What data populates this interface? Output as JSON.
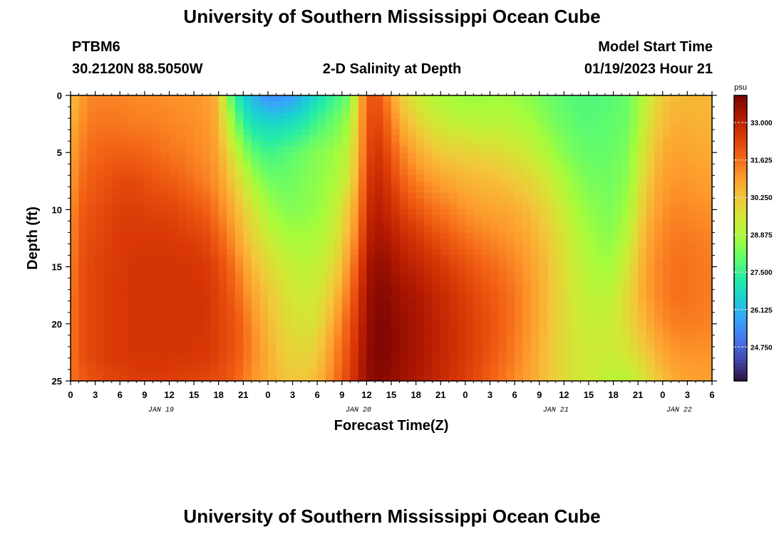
{
  "header": {
    "title": "University of Southern Mississippi Ocean Cube",
    "station_id": "PTBM6",
    "station_coords": "30.2120N  88.5050W",
    "subtitle": "2-D Salinity at Depth",
    "model_start_label": "Model Start Time",
    "model_start_value": "01/19/2023 Hour 21"
  },
  "footer": {
    "title": "University of Southern Mississippi Ocean Cube"
  },
  "colors": {
    "colormap": [
      "#30123b",
      "#4145ab",
      "#4675ed",
      "#39a2fc",
      "#1bcfd4",
      "#24eca6",
      "#61fc6c",
      "#a4fc3b",
      "#d1e834",
      "#f3c63a",
      "#fe9b2d",
      "#f36315",
      "#d93806",
      "#b11901",
      "#7a0402"
    ]
  },
  "chart_data": {
    "type": "heatmap",
    "title": "2-D Salinity at Depth",
    "xlabel": "Forecast Time(Z)",
    "ylabel": "Depth (ft)",
    "colorbar_unit": "psu",
    "x_range_hours": [
      0,
      78
    ],
    "y_range_ft": [
      0,
      25
    ],
    "x_tick_labels": [
      "0",
      "3",
      "6",
      "9",
      "12",
      "15",
      "18",
      "21",
      "0",
      "3",
      "6",
      "9",
      "12",
      "15",
      "18",
      "21",
      "0",
      "3",
      "6",
      "9",
      "12",
      "15",
      "18",
      "21",
      "0",
      "3",
      "6"
    ],
    "y_tick_labels": [
      "0",
      "5",
      "10",
      "15",
      "20",
      "25"
    ],
    "date_labels": [
      {
        "label": "JAN 19",
        "hour": 11
      },
      {
        "label": "JAN 20",
        "hour": 35
      },
      {
        "label": "JAN 21",
        "hour": 59
      },
      {
        "label": "JAN 22",
        "hour": 74
      }
    ],
    "colorbar_ticks": [
      "33.000",
      "31.625",
      "30.250",
      "28.875",
      "27.500",
      "26.125",
      "24.750"
    ],
    "colorbar_range": [
      23.5,
      34.0
    ],
    "depth_levels_ft": [
      0,
      2.5,
      5,
      7.5,
      10,
      12.5,
      15,
      17.5,
      20,
      22.5,
      25
    ],
    "time_hours": [
      0,
      1,
      2,
      3,
      4,
      5,
      6,
      8,
      10,
      12,
      14,
      16,
      17,
      18,
      19,
      20,
      21,
      22,
      24,
      26,
      28,
      30,
      32,
      34,
      35,
      36,
      37,
      38,
      39,
      40,
      42,
      44,
      46,
      48,
      50,
      52,
      54,
      56,
      58,
      60,
      62,
      64,
      66,
      68,
      70,
      72,
      74,
      76,
      78
    ],
    "salinity": [
      [
        30.3,
        30.6,
        30.8,
        30.9,
        31.0,
        31.1,
        31.2,
        31.3,
        31.3,
        31.3,
        31.5
      ],
      [
        30.8,
        31.0,
        31.3,
        31.5,
        31.8,
        31.9,
        32.0,
        32.0,
        32.0,
        32.0,
        31.8
      ],
      [
        31.2,
        31.4,
        31.6,
        31.8,
        32.0,
        32.1,
        32.2,
        32.2,
        32.2,
        32.2,
        32.0
      ],
      [
        31.3,
        31.5,
        31.7,
        31.9,
        32.1,
        32.2,
        32.3,
        32.3,
        32.3,
        32.3,
        32.1
      ],
      [
        31.3,
        31.5,
        31.8,
        32.0,
        32.2,
        32.3,
        32.4,
        32.4,
        32.4,
        32.4,
        32.2
      ],
      [
        31.3,
        31.5,
        31.8,
        32.1,
        32.3,
        32.4,
        32.4,
        32.5,
        32.5,
        32.5,
        32.3
      ],
      [
        31.3,
        31.5,
        31.8,
        32.2,
        32.4,
        32.5,
        32.5,
        32.5,
        32.5,
        32.5,
        32.3
      ],
      [
        31.2,
        31.4,
        31.8,
        32.2,
        32.4,
        32.5,
        32.6,
        32.6,
        32.6,
        32.6,
        32.4
      ],
      [
        31.2,
        31.4,
        31.7,
        32.0,
        32.3,
        32.5,
        32.6,
        32.6,
        32.6,
        32.6,
        32.4
      ],
      [
        31.1,
        31.3,
        31.5,
        31.9,
        32.3,
        32.5,
        32.6,
        32.6,
        32.6,
        32.6,
        32.4
      ],
      [
        31.1,
        31.2,
        31.4,
        31.7,
        32.1,
        32.4,
        32.6,
        32.6,
        32.6,
        32.6,
        32.3
      ],
      [
        31.0,
        31.1,
        31.2,
        31.4,
        31.9,
        32.3,
        32.5,
        32.6,
        32.6,
        32.5,
        32.3
      ],
      [
        30.9,
        31.0,
        31.1,
        31.3,
        31.7,
        32.1,
        32.4,
        32.5,
        32.5,
        32.5,
        32.2
      ],
      [
        30.4,
        30.6,
        30.8,
        31.0,
        31.4,
        31.8,
        32.2,
        32.3,
        32.3,
        32.3,
        32.1
      ],
      [
        28.6,
        29.4,
        30.1,
        30.6,
        31.0,
        31.5,
        31.9,
        32.1,
        32.2,
        32.2,
        32.0
      ],
      [
        27.4,
        28.4,
        29.4,
        30.1,
        30.6,
        31.0,
        31.5,
        31.8,
        32.0,
        32.0,
        31.8
      ],
      [
        26.6,
        27.5,
        28.6,
        29.5,
        30.1,
        30.5,
        31.0,
        31.4,
        31.7,
        31.7,
        31.5
      ],
      [
        26.1,
        27.0,
        28.0,
        28.9,
        29.7,
        30.1,
        30.5,
        30.9,
        31.2,
        31.3,
        31.1
      ],
      [
        25.4,
        26.7,
        27.6,
        28.2,
        28.8,
        29.4,
        29.9,
        30.3,
        30.5,
        30.7,
        30.7
      ],
      [
        25.5,
        26.8,
        27.8,
        28.1,
        28.4,
        28.9,
        29.4,
        29.7,
        29.9,
        30.1,
        30.3
      ],
      [
        26.0,
        27.1,
        28.1,
        28.3,
        28.4,
        28.8,
        29.2,
        29.4,
        29.6,
        29.9,
        30.2
      ],
      [
        26.8,
        27.7,
        28.4,
        28.5,
        28.6,
        28.9,
        29.2,
        29.5,
        29.7,
        30.1,
        30.5
      ],
      [
        27.5,
        28.1,
        28.6,
        28.8,
        29.1,
        29.4,
        29.8,
        30.3,
        30.8,
        31.2,
        31.4
      ],
      [
        28.2,
        28.8,
        29.3,
        29.7,
        30.3,
        30.7,
        31.2,
        31.6,
        32.0,
        32.2,
        32.4
      ],
      [
        30.2,
        30.4,
        30.6,
        30.9,
        31.2,
        31.6,
        32.1,
        32.5,
        32.7,
        32.9,
        33.0
      ],
      [
        31.8,
        31.9,
        32.0,
        32.3,
        32.6,
        32.9,
        33.2,
        33.4,
        33.5,
        33.6,
        33.6
      ],
      [
        32.1,
        32.4,
        32.7,
        32.9,
        33.2,
        33.4,
        33.7,
        33.8,
        33.9,
        33.9,
        33.8
      ],
      [
        31.7,
        32.0,
        32.4,
        32.7,
        33.0,
        33.3,
        33.6,
        33.8,
        33.9,
        33.9,
        33.8
      ],
      [
        31.0,
        31.5,
        32.0,
        32.4,
        32.8,
        33.2,
        33.5,
        33.7,
        33.8,
        33.8,
        33.7
      ],
      [
        30.1,
        30.8,
        31.4,
        31.9,
        32.4,
        32.9,
        33.2,
        33.5,
        33.6,
        33.6,
        33.5
      ],
      [
        29.4,
        30.1,
        30.8,
        31.4,
        32.0,
        32.6,
        33.0,
        33.3,
        33.4,
        33.4,
        33.3
      ],
      [
        29.0,
        29.6,
        30.3,
        31.0,
        31.6,
        32.2,
        32.7,
        33.0,
        33.1,
        33.1,
        33.0
      ],
      [
        28.8,
        29.3,
        30.1,
        30.8,
        31.4,
        31.9,
        32.4,
        32.7,
        32.8,
        32.8,
        32.7
      ],
      [
        28.6,
        29.2,
        30.0,
        30.6,
        31.1,
        31.6,
        32.1,
        32.4,
        32.5,
        32.5,
        32.4
      ],
      [
        28.6,
        29.1,
        29.9,
        30.5,
        30.9,
        31.4,
        31.8,
        32.1,
        32.2,
        32.2,
        32.0
      ],
      [
        28.7,
        29.1,
        29.8,
        30.4,
        30.8,
        31.2,
        31.6,
        31.8,
        31.9,
        31.8,
        31.6
      ],
      [
        28.6,
        29.0,
        29.6,
        30.2,
        30.7,
        31.0,
        31.3,
        31.5,
        31.5,
        31.4,
        31.2
      ],
      [
        28.4,
        28.8,
        29.3,
        29.9,
        30.4,
        30.7,
        30.9,
        31.0,
        31.0,
        30.9,
        30.8
      ],
      [
        28.1,
        28.4,
        28.9,
        29.5,
        29.9,
        30.2,
        30.4,
        30.4,
        30.4,
        30.3,
        30.3
      ],
      [
        27.9,
        28.1,
        28.4,
        28.9,
        29.3,
        29.6,
        29.7,
        29.8,
        29.8,
        29.8,
        29.8
      ],
      [
        27.8,
        27.9,
        28.1,
        28.4,
        28.7,
        29.0,
        29.2,
        29.3,
        29.4,
        29.5,
        29.5
      ],
      [
        27.8,
        27.9,
        28.0,
        28.2,
        28.4,
        28.6,
        28.8,
        29.1,
        29.3,
        29.4,
        29.4
      ],
      [
        27.9,
        28.0,
        28.1,
        28.2,
        28.3,
        28.5,
        28.8,
        29.2,
        29.4,
        29.4,
        29.0
      ],
      [
        28.1,
        28.2,
        28.4,
        28.6,
        28.9,
        29.3,
        29.7,
        30.0,
        29.9,
        29.6,
        29.1
      ],
      [
        29.2,
        29.5,
        29.8,
        30.1,
        30.4,
        30.7,
        30.9,
        30.9,
        30.6,
        30.2,
        29.7
      ],
      [
        30.2,
        30.4,
        30.7,
        30.9,
        31.1,
        31.3,
        31.4,
        31.4,
        31.2,
        30.8,
        30.4
      ],
      [
        30.5,
        30.7,
        30.9,
        31.1,
        31.3,
        31.5,
        31.6,
        31.6,
        31.4,
        31.1,
        30.8
      ],
      [
        30.5,
        30.6,
        30.8,
        31.0,
        31.2,
        31.4,
        31.5,
        31.5,
        31.4,
        31.1,
        30.9
      ],
      [
        30.5,
        30.6,
        30.7,
        30.9,
        31.1,
        31.3,
        31.4,
        31.4,
        31.3,
        31.1,
        30.9
      ]
    ]
  }
}
